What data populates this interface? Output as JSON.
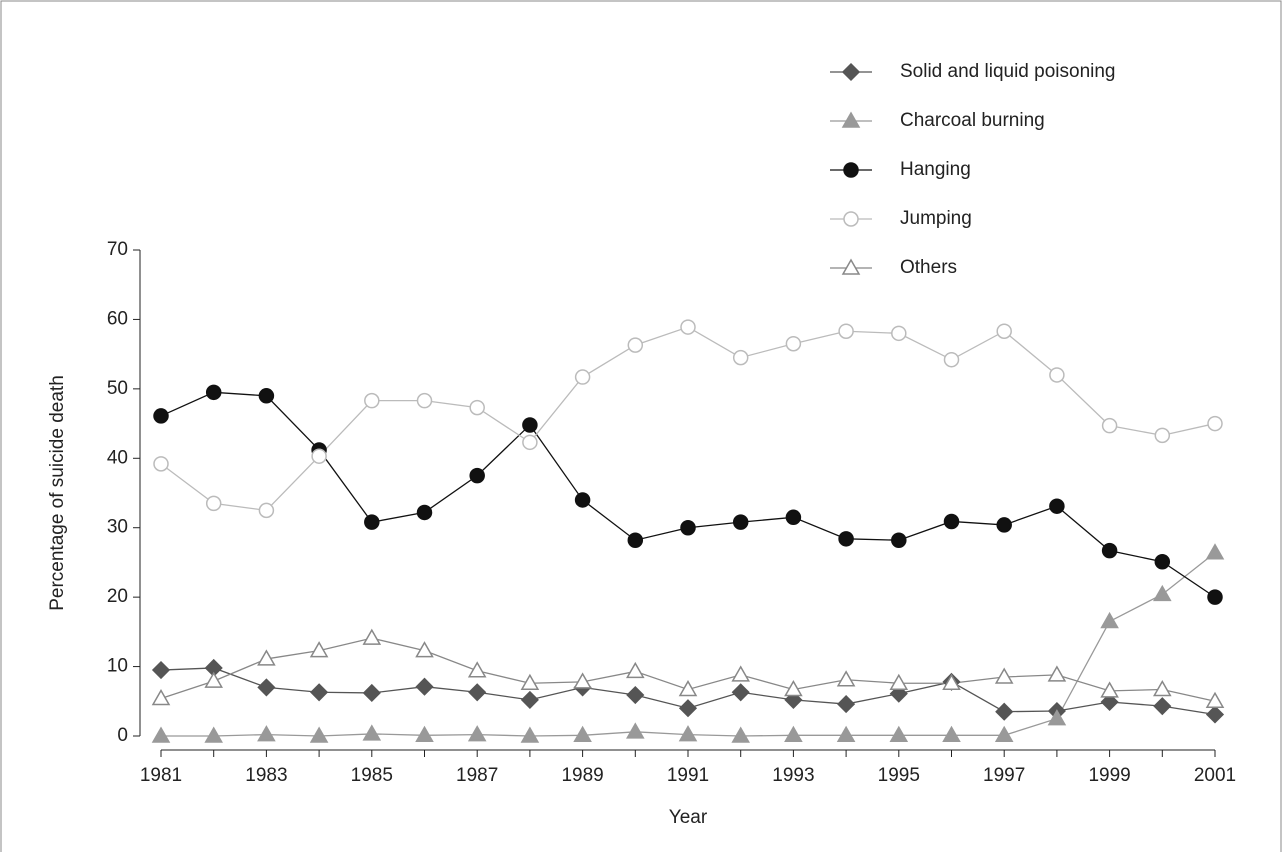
{
  "chart_data": {
    "type": "line",
    "x_label": "Year",
    "y_label": "Percentage of suicide death",
    "categories": [
      "1981",
      null,
      "1983",
      null,
      "1985",
      null,
      "1987",
      null,
      "1989",
      null,
      "1991",
      null,
      "1993",
      null,
      "1995",
      null,
      "1997",
      null,
      "1999",
      null,
      "2001"
    ],
    "ylim": [
      0,
      70
    ],
    "yticks": [
      0,
      10,
      20,
      30,
      40,
      50,
      60,
      70
    ],
    "legend": "top-right",
    "series": [
      {
        "name": "Solid and liquid poisoning",
        "color": "#555555",
        "marker": "diamond",
        "filled": true,
        "values": [
          9.5,
          9.8,
          7.0,
          6.3,
          6.2,
          7.1,
          6.3,
          5.2,
          7.0,
          5.9,
          4.0,
          6.3,
          5.2,
          4.6,
          6.1,
          7.8,
          3.5,
          3.6,
          4.9,
          4.3,
          3.1
        ]
      },
      {
        "name": "Charcoal burning",
        "color": "#999999",
        "marker": "triangle",
        "filled": true,
        "values": [
          0,
          0,
          0.2,
          0,
          0.3,
          0.1,
          0.2,
          0,
          0.1,
          0.6,
          0.2,
          0,
          0.1,
          0.1,
          0.1,
          0.1,
          0.1,
          2.5,
          16.5,
          20.4,
          26.4
        ]
      },
      {
        "name": "Hanging",
        "color": "#111111",
        "marker": "circle",
        "filled": true,
        "values": [
          46.1,
          49.5,
          49.0,
          41.2,
          30.8,
          32.2,
          37.5,
          44.8,
          34.0,
          28.2,
          30.0,
          30.8,
          31.5,
          28.4,
          28.2,
          30.9,
          30.4,
          33.1,
          26.7,
          25.1,
          20.0
        ]
      },
      {
        "name": "Jumping",
        "color": "#bbbbbb",
        "marker": "circle",
        "filled": false,
        "values": [
          39.2,
          33.5,
          32.5,
          40.3,
          48.3,
          48.3,
          47.3,
          42.3,
          51.7,
          56.3,
          58.9,
          54.5,
          56.5,
          58.3,
          58.0,
          54.2,
          58.3,
          52.0,
          44.7,
          43.3,
          45.0
        ]
      },
      {
        "name": "Others",
        "color": "#888888",
        "marker": "triangle",
        "filled": false,
        "values": [
          5.4,
          7.9,
          11.1,
          12.3,
          14.1,
          12.3,
          9.4,
          7.6,
          7.8,
          9.3,
          6.7,
          8.8,
          6.7,
          8.1,
          7.6,
          7.6,
          8.5,
          8.8,
          6.5,
          6.7,
          5.0
        ]
      }
    ]
  }
}
